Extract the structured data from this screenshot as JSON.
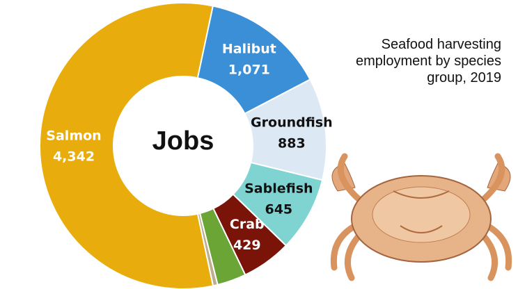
{
  "chart_data": {
    "type": "donut",
    "title": "Seafood harvesting employment by species group, 2019",
    "center_label": "Jobs",
    "categories": [
      "Halibut",
      "Groundfish",
      "Sablefish",
      "Crab",
      null,
      null,
      "Salmon"
    ],
    "values": [
      1071,
      883,
      645,
      429,
      250,
      40,
      4342
    ],
    "value_labels": [
      "1,071",
      "883",
      "645",
      "429",
      null,
      null,
      "4,342"
    ],
    "colors": [
      "#3a8fd6",
      "#dce9f5",
      "#7fd4d2",
      "#7a1408",
      "#6aa536",
      "#bcae8e",
      "#e8ad0c"
    ],
    "label_colors": [
      "#ffffff",
      "#111111",
      "#111111",
      "#ffffff",
      null,
      null,
      "#ffffff"
    ]
  }
}
